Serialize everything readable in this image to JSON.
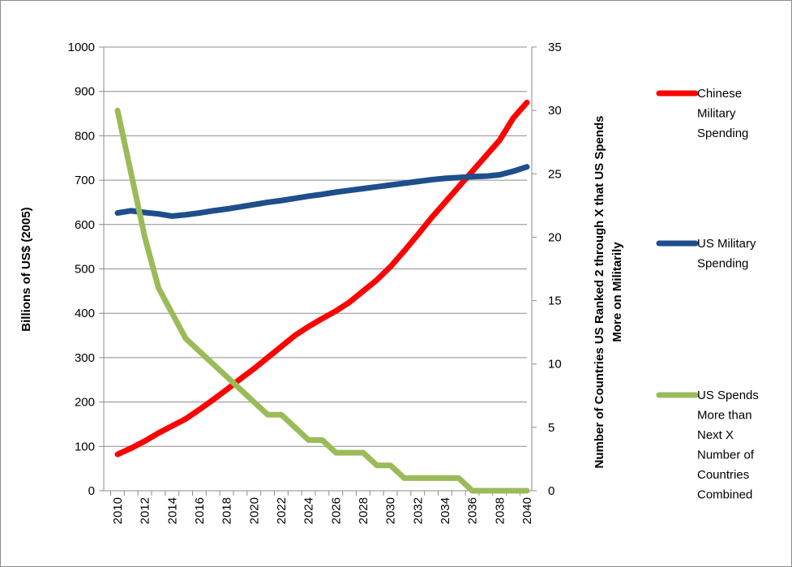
{
  "chart_data": {
    "type": "line",
    "x": [
      2010,
      2011,
      2012,
      2013,
      2014,
      2015,
      2016,
      2017,
      2018,
      2019,
      2020,
      2021,
      2022,
      2023,
      2024,
      2025,
      2026,
      2027,
      2028,
      2029,
      2030,
      2031,
      2032,
      2033,
      2034,
      2035,
      2036,
      2037,
      2038,
      2039,
      2040
    ],
    "x_tick_labels": [
      "2010",
      "2012",
      "2014",
      "2016",
      "2018",
      "2020",
      "2022",
      "2024",
      "2026",
      "2028",
      "2030",
      "2032",
      "2034",
      "2036",
      "2038",
      "2040"
    ],
    "ylabel": "Billions of US$ (2005)",
    "y2label": "Number of Countries US Ranked 2 through X that US Spends More on Militarily",
    "ylim": [
      0,
      1000
    ],
    "y2lim": [
      0,
      35
    ],
    "y_ticks": [
      0,
      100,
      200,
      300,
      400,
      500,
      600,
      700,
      800,
      900,
      1000
    ],
    "y2_ticks": [
      0,
      5,
      10,
      15,
      20,
      25,
      30,
      35
    ],
    "grid": "horizontal",
    "legend_position": "right",
    "series": [
      {
        "name": "Chinese Military Spending",
        "legend_lines": [
          "Chinese",
          "Military",
          "Spending"
        ],
        "axis": "left",
        "color": "#ff0000",
        "values": [
          82,
          96,
          112,
          130,
          146,
          162,
          183,
          205,
          228,
          252,
          275,
          300,
          325,
          350,
          370,
          388,
          405,
          425,
          450,
          475,
          505,
          540,
          577,
          615,
          650,
          685,
          720,
          755,
          790,
          840,
          875
        ]
      },
      {
        "name": "US Military Spending",
        "legend_lines": [
          "US Military",
          "Spending"
        ],
        "axis": "left",
        "color": "#1f4e8c",
        "values": [
          626,
          631,
          627,
          624,
          619,
          622,
          626,
          631,
          635,
          640,
          645,
          650,
          654,
          659,
          664,
          668,
          673,
          677,
          681,
          685,
          689,
          693,
          697,
          701,
          704,
          706,
          708,
          709,
          712,
          720,
          730
        ]
      },
      {
        "name": "US Spends More than Next X Number of Countries Combined",
        "legend_lines": [
          "US Spends",
          "More than",
          "Next X",
          "Number of",
          "Countries",
          "Combined"
        ],
        "axis": "right",
        "color": "#9bbb59",
        "values": [
          30,
          25,
          20,
          16,
          14,
          12,
          11,
          10,
          9,
          8,
          7,
          6,
          6,
          5,
          4,
          4,
          3,
          3,
          3,
          2,
          2,
          1,
          1,
          1,
          1,
          1,
          0,
          0,
          0,
          0,
          0
        ]
      }
    ]
  }
}
